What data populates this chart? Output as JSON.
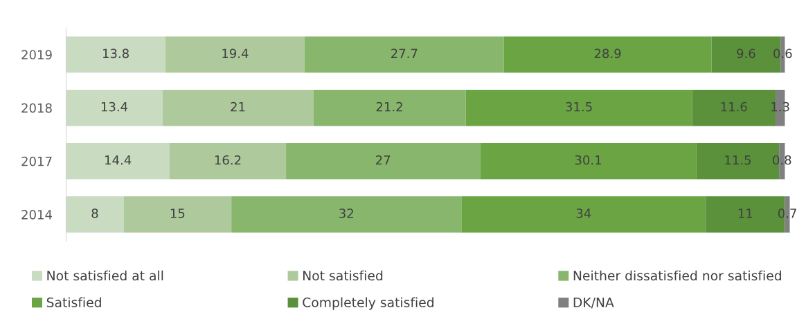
{
  "chart_data": {
    "type": "bar",
    "orientation": "horizontal",
    "stacked": true,
    "data_labels": true,
    "legend": "bottom",
    "grid": false,
    "tick_labels": "y",
    "xlim": [
      0,
      100.7
    ],
    "categories": [
      "2019",
      "2018",
      "2017",
      "2014"
    ],
    "series": [
      {
        "name": "Not satisfied at all",
        "color": "#c9dbc0",
        "values": [
          13.8,
          13.4,
          14.4,
          8
        ]
      },
      {
        "name": "Not satisfied",
        "color": "#aeca9c",
        "values": [
          19.4,
          21,
          16.2,
          15
        ]
      },
      {
        "name": "Neither dissatisfied nor satisfied",
        "color": "#88b66c",
        "values": [
          27.7,
          21.2,
          27,
          32
        ]
      },
      {
        "name": "Satisfied",
        "color": "#6aa443",
        "values": [
          28.9,
          31.5,
          30.1,
          34
        ]
      },
      {
        "name": "Completely satisfied",
        "color": "#5a913a",
        "values": [
          9.6,
          11.6,
          11.5,
          11
        ]
      },
      {
        "name": "DK/NA",
        "color": "#808080",
        "values": [
          0.6,
          1.3,
          0.8,
          0.7
        ]
      }
    ]
  }
}
